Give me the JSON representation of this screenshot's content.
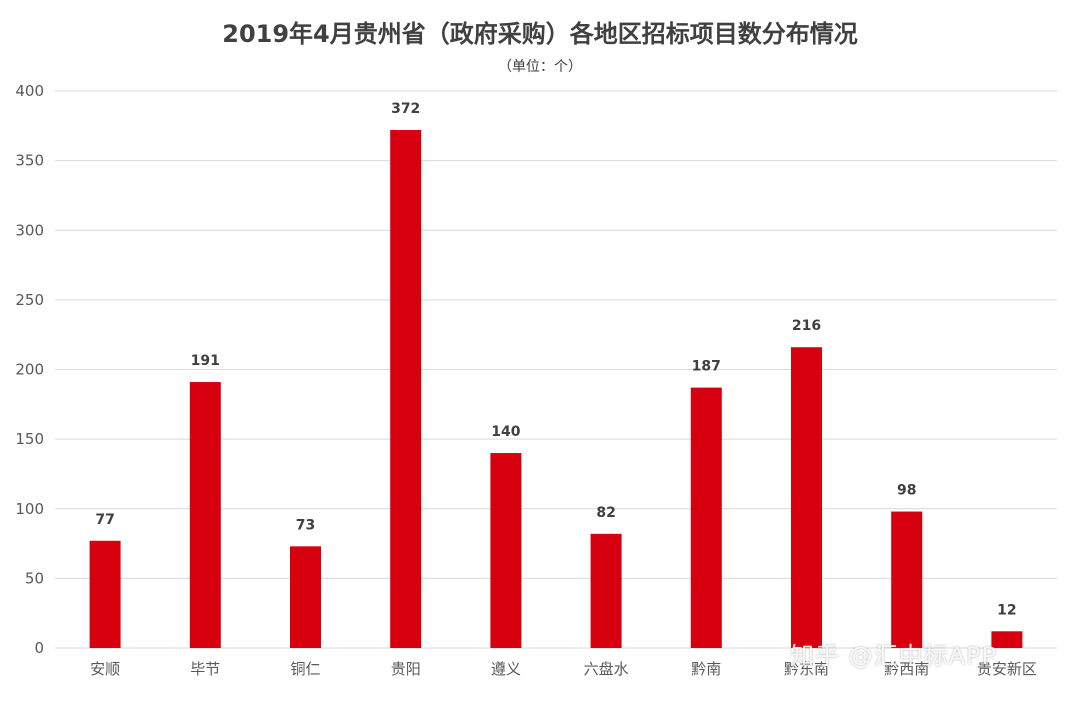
{
  "chart_data": {
    "type": "bar",
    "title": "2019年4月贵州省（政府采购）各地区招标项目数分布情况",
    "subtitle": "（单位：个）",
    "categories": [
      "安顺",
      "毕节",
      "铜仁",
      "贵阳",
      "遵义",
      "六盘水",
      "黔南",
      "黔东南",
      "黔西南",
      "贵安新区"
    ],
    "values": [
      77,
      191,
      73,
      372,
      140,
      82,
      187,
      216,
      98,
      12
    ],
    "ylim": [
      0,
      400
    ],
    "yticks": [
      0,
      50,
      100,
      150,
      200,
      250,
      300,
      350,
      400
    ],
    "grid": true,
    "bar_color": "#d7000f",
    "grid_color": "#d9d9d9"
  },
  "watermark": "知乎 @汇中标APP"
}
